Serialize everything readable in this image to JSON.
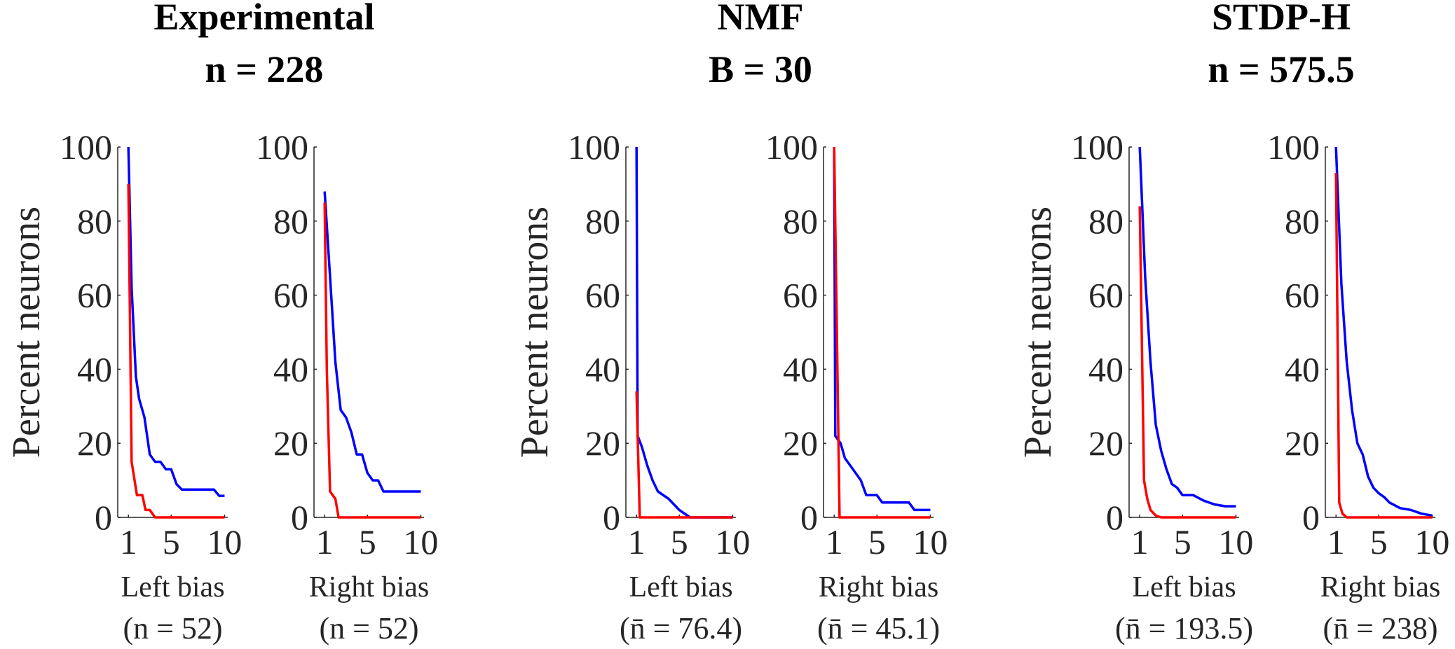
{
  "figure": {
    "groups": [
      {
        "title_line1": "Experimental",
        "title_line2": "n = 228"
      },
      {
        "title_line1": "NMF",
        "title_line2": "B = 30"
      },
      {
        "title_line1": "STDP-H",
        "title_line2": "n = 575.5"
      }
    ]
  },
  "chart_data": [
    {
      "type": "line",
      "xlabel": "Left bias",
      "xsublabel": "(n = 52)",
      "ylabel": "Percent neurons",
      "xlim": [
        0,
        10.3
      ],
      "ylim": [
        0,
        100
      ],
      "xticks": [
        1,
        5,
        10
      ],
      "yticks": [
        0,
        20,
        40,
        60,
        80,
        100
      ],
      "colors": {
        "series1": "#0000ff",
        "series2": "#ff0000"
      },
      "series": [
        {
          "x": [
            1,
            1.3,
            1.7,
            2,
            2.5,
            3,
            3.5,
            4,
            4.5,
            5,
            5.5,
            6,
            7,
            8,
            9,
            9.5,
            10
          ],
          "y": [
            100,
            62,
            38,
            32,
            27,
            17,
            15,
            15,
            13,
            13,
            9,
            7.5,
            7.5,
            7.5,
            7.5,
            5.8,
            5.8
          ]
        },
        {
          "x": [
            1,
            1.3,
            1.8,
            2.3,
            2.6,
            3,
            3.5,
            4,
            10
          ],
          "y": [
            90,
            15,
            6,
            6,
            2,
            2,
            0,
            0,
            0
          ]
        }
      ]
    },
    {
      "type": "line",
      "xlabel": "Right bias",
      "xsublabel": "(n = 52)",
      "ylabel": "",
      "xlim": [
        0,
        10.3
      ],
      "ylim": [
        0,
        100
      ],
      "xticks": [
        1,
        5,
        10
      ],
      "yticks": [
        0,
        20,
        40,
        60,
        80,
        100
      ],
      "colors": {
        "series1": "#0000ff",
        "series2": "#ff0000"
      },
      "series": [
        {
          "x": [
            1,
            1.5,
            2,
            2.5,
            3,
            3.5,
            4,
            4.5,
            5,
            5.5,
            6,
            6.5,
            7,
            10
          ],
          "y": [
            88,
            65,
            42,
            29,
            27,
            23,
            17,
            17,
            12,
            10,
            10,
            7,
            7,
            7
          ]
        },
        {
          "x": [
            1,
            1.2,
            1.5,
            2,
            2.3,
            10
          ],
          "y": [
            85,
            40,
            7,
            5,
            0,
            0
          ]
        }
      ]
    },
    {
      "type": "line",
      "xlabel": "Left bias",
      "xsublabel": "(n̄ = 76.4)",
      "ylabel": "Percent neurons",
      "xlim": [
        0,
        10.3
      ],
      "ylim": [
        0,
        100
      ],
      "xticks": [
        1,
        5,
        10
      ],
      "yticks": [
        0,
        20,
        40,
        60,
        80,
        100
      ],
      "colors": {
        "series1": "#0000ff",
        "series2": "#ff0000"
      },
      "series": [
        {
          "x": [
            1,
            1.1,
            1.5,
            2,
            2.5,
            3,
            4,
            5,
            6,
            7,
            10
          ],
          "y": [
            100,
            22,
            19,
            14,
            10,
            7,
            5,
            2,
            0,
            0,
            0
          ]
        },
        {
          "x": [
            1,
            1.3,
            10
          ],
          "y": [
            34,
            0,
            0
          ]
        }
      ]
    },
    {
      "type": "line",
      "xlabel": "Right bias",
      "xsublabel": "(n̄ = 45.1)",
      "ylabel": "",
      "xlim": [
        0,
        10.3
      ],
      "ylim": [
        0,
        100
      ],
      "xticks": [
        1,
        5,
        10
      ],
      "yticks": [
        0,
        20,
        40,
        60,
        80,
        100
      ],
      "colors": {
        "series1": "#0000ff",
        "series2": "#ff0000"
      },
      "series": [
        {
          "x": [
            1,
            1.1,
            1.6,
            2,
            2.5,
            3,
            3.5,
            4,
            4.5,
            5,
            5.5,
            6,
            7,
            8,
            8.5,
            9,
            10
          ],
          "y": [
            100,
            22,
            20,
            16,
            14,
            12,
            10,
            6,
            6,
            6,
            4,
            4,
            4,
            4,
            2,
            2,
            2
          ]
        },
        {
          "x": [
            1,
            1.5,
            10
          ],
          "y": [
            100,
            0,
            0
          ]
        }
      ]
    },
    {
      "type": "line",
      "xlabel": "Left bias",
      "xsublabel": "(n̄ = 193.5)",
      "ylabel": "Percent neurons",
      "xlim": [
        0,
        10.3
      ],
      "ylim": [
        0,
        100
      ],
      "xticks": [
        1,
        5,
        10
      ],
      "yticks": [
        0,
        20,
        40,
        60,
        80,
        100
      ],
      "colors": {
        "series1": "#0000ff",
        "series2": "#ff0000"
      },
      "series": [
        {
          "x": [
            1,
            1.5,
            2,
            2.5,
            3,
            3.5,
            4,
            4.5,
            5,
            6,
            7,
            8,
            9,
            10
          ],
          "y": [
            100,
            65,
            42,
            25,
            18,
            13,
            9,
            8,
            6,
            6,
            4.5,
            3.5,
            3,
            3
          ]
        },
        {
          "x": [
            1,
            1.4,
            1.7,
            2,
            2.5,
            3,
            10
          ],
          "y": [
            84,
            10,
            5,
            2,
            0.5,
            0,
            0
          ]
        }
      ]
    },
    {
      "type": "line",
      "xlabel": "Right bias",
      "xsublabel": "(n̄ = 238)",
      "ylabel": "",
      "xlim": [
        0,
        10.3
      ],
      "ylim": [
        0,
        100
      ],
      "xticks": [
        1,
        5,
        10
      ],
      "yticks": [
        0,
        20,
        40,
        60,
        80,
        100
      ],
      "colors": {
        "series1": "#0000ff",
        "series2": "#ff0000"
      },
      "series": [
        {
          "x": [
            1,
            1.5,
            2,
            2.5,
            3,
            3.5,
            4,
            4.5,
            5,
            5.5,
            6,
            7,
            8,
            9,
            10
          ],
          "y": [
            100,
            63,
            42,
            29,
            20,
            17,
            11,
            8,
            6.5,
            5.5,
            4,
            2.5,
            2,
            1,
            0.5
          ]
        },
        {
          "x": [
            1,
            1.3,
            1.6,
            2,
            2.5,
            10
          ],
          "y": [
            93,
            4,
            1,
            0,
            0,
            0
          ]
        }
      ]
    }
  ]
}
